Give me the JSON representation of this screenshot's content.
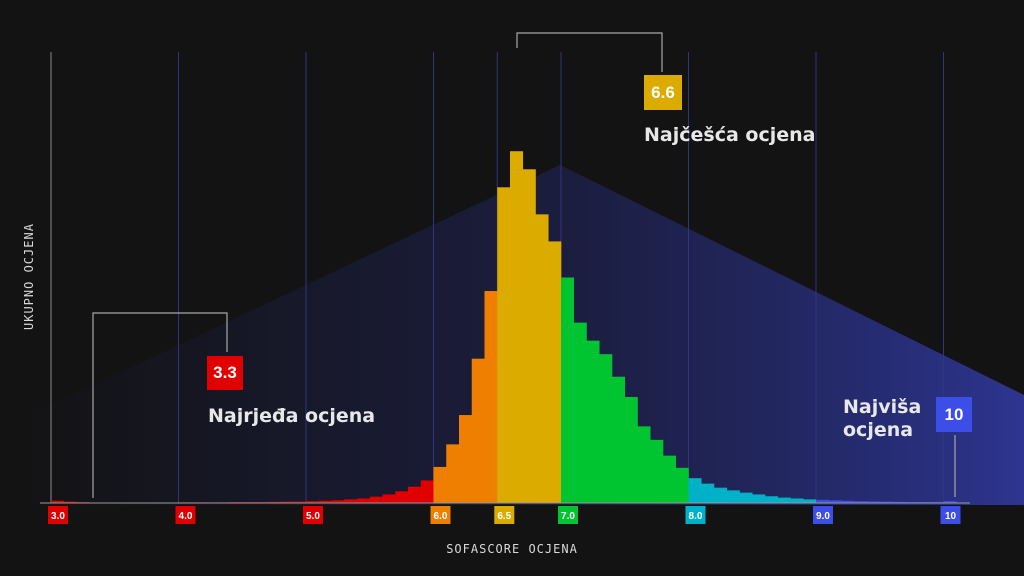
{
  "chart_data": {
    "type": "bar",
    "title": "",
    "xlabel": "SOFASCORE OCJENA",
    "ylabel": "UKUPNO OCJENA",
    "xlim": [
      3.0,
      10.0
    ],
    "ylim": [
      0,
      100
    ],
    "bin_width": 0.1,
    "tick_labels": [
      "3.0",
      "4.0",
      "5.0",
      "6.0",
      "6.5",
      "7.0",
      "8.0",
      "9.0",
      "10"
    ],
    "tick_values": [
      3.0,
      4.0,
      5.0,
      6.0,
      6.5,
      7.0,
      8.0,
      9.0,
      10.0
    ],
    "tick_colors": [
      "#e00000",
      "#e00000",
      "#e00000",
      "#ee7f00",
      "#dbab00",
      "#00c430",
      "#00b1c8",
      "#3d4de8",
      "#3d4de8"
    ],
    "bins": [
      {
        "x": 3.0,
        "y": 0.5
      },
      {
        "x": 3.1,
        "y": 0.3
      },
      {
        "x": 3.2,
        "y": 0.2
      },
      {
        "x": 3.3,
        "y": 0.1
      },
      {
        "x": 3.4,
        "y": 0.1
      },
      {
        "x": 3.5,
        "y": 0.1
      },
      {
        "x": 3.6,
        "y": 0.1
      },
      {
        "x": 3.7,
        "y": 0.1
      },
      {
        "x": 3.8,
        "y": 0.1
      },
      {
        "x": 3.9,
        "y": 0.1
      },
      {
        "x": 4.0,
        "y": 0.15
      },
      {
        "x": 4.1,
        "y": 0.15
      },
      {
        "x": 4.2,
        "y": 0.15
      },
      {
        "x": 4.3,
        "y": 0.15
      },
      {
        "x": 4.4,
        "y": 0.2
      },
      {
        "x": 4.5,
        "y": 0.2
      },
      {
        "x": 4.6,
        "y": 0.2
      },
      {
        "x": 4.7,
        "y": 0.25
      },
      {
        "x": 4.8,
        "y": 0.3
      },
      {
        "x": 4.9,
        "y": 0.3
      },
      {
        "x": 5.0,
        "y": 0.4
      },
      {
        "x": 5.1,
        "y": 0.5
      },
      {
        "x": 5.2,
        "y": 0.6
      },
      {
        "x": 5.3,
        "y": 0.8
      },
      {
        "x": 5.4,
        "y": 1.0
      },
      {
        "x": 5.5,
        "y": 1.4
      },
      {
        "x": 5.6,
        "y": 1.9
      },
      {
        "x": 5.7,
        "y": 2.6
      },
      {
        "x": 5.8,
        "y": 3.6
      },
      {
        "x": 5.9,
        "y": 5.0
      },
      {
        "x": 6.0,
        "y": 8.0
      },
      {
        "x": 6.1,
        "y": 13.0
      },
      {
        "x": 6.2,
        "y": 19.5
      },
      {
        "x": 6.3,
        "y": 32.0
      },
      {
        "x": 6.4,
        "y": 47.0
      },
      {
        "x": 6.5,
        "y": 70.0
      },
      {
        "x": 6.6,
        "y": 78.0
      },
      {
        "x": 6.7,
        "y": 74.0
      },
      {
        "x": 6.8,
        "y": 64.0
      },
      {
        "x": 6.9,
        "y": 58.0
      },
      {
        "x": 7.0,
        "y": 50.0
      },
      {
        "x": 7.1,
        "y": 40.0
      },
      {
        "x": 7.2,
        "y": 36.0
      },
      {
        "x": 7.3,
        "y": 33.0
      },
      {
        "x": 7.4,
        "y": 28.0
      },
      {
        "x": 7.5,
        "y": 23.5
      },
      {
        "x": 7.6,
        "y": 17.0
      },
      {
        "x": 7.7,
        "y": 14.0
      },
      {
        "x": 7.8,
        "y": 10.5
      },
      {
        "x": 7.9,
        "y": 7.8
      },
      {
        "x": 8.0,
        "y": 5.5
      },
      {
        "x": 8.1,
        "y": 4.3
      },
      {
        "x": 8.2,
        "y": 3.4
      },
      {
        "x": 8.3,
        "y": 2.8
      },
      {
        "x": 8.4,
        "y": 2.3
      },
      {
        "x": 8.5,
        "y": 1.9
      },
      {
        "x": 8.6,
        "y": 1.5
      },
      {
        "x": 8.7,
        "y": 1.2
      },
      {
        "x": 8.8,
        "y": 1.0
      },
      {
        "x": 8.9,
        "y": 0.8
      },
      {
        "x": 9.0,
        "y": 0.7
      },
      {
        "x": 9.1,
        "y": 0.6
      },
      {
        "x": 9.2,
        "y": 0.5
      },
      {
        "x": 9.3,
        "y": 0.4
      },
      {
        "x": 9.4,
        "y": 0.35
      },
      {
        "x": 9.5,
        "y": 0.3
      },
      {
        "x": 9.6,
        "y": 0.25
      },
      {
        "x": 9.7,
        "y": 0.2
      },
      {
        "x": 9.8,
        "y": 0.2
      },
      {
        "x": 9.9,
        "y": 0.2
      },
      {
        "x": 10.0,
        "y": 0.4
      }
    ],
    "color_ranges": [
      {
        "from": 3.0,
        "to": 6.0,
        "color": "#e00000"
      },
      {
        "from": 6.0,
        "to": 6.5,
        "color": "#ee7f00"
      },
      {
        "from": 6.5,
        "to": 7.0,
        "color": "#dbab00"
      },
      {
        "from": 7.0,
        "to": 8.0,
        "color": "#00c430"
      },
      {
        "from": 8.0,
        "to": 9.0,
        "color": "#00b1c8"
      },
      {
        "from": 9.0,
        "to": 10.1,
        "color": "#3d4de8"
      }
    ],
    "grid": "vertical",
    "annotations": [
      {
        "value": "3.3",
        "label": "Najrjeđa ocjena",
        "color": "#e00000",
        "x": 3.3
      },
      {
        "value": "6.6",
        "label": "Najčešća ocjena",
        "color": "#dbab00",
        "x": 6.6
      },
      {
        "value": "10",
        "label": "Najviša ocjena",
        "color": "#3d4de8",
        "x": 10.0
      }
    ]
  },
  "labels": {
    "ylabel": "UKUPNO OCJENA",
    "xlabel": "SOFASCORE OCJENA",
    "ann_low_value": "3.3",
    "ann_low_text": "Najrjeđa ocjena",
    "ann_mode_value": "6.6",
    "ann_mode_text": "Najčešća ocjena",
    "ann_high_value": "10",
    "ann_high_text": "Najviša ocjena"
  }
}
